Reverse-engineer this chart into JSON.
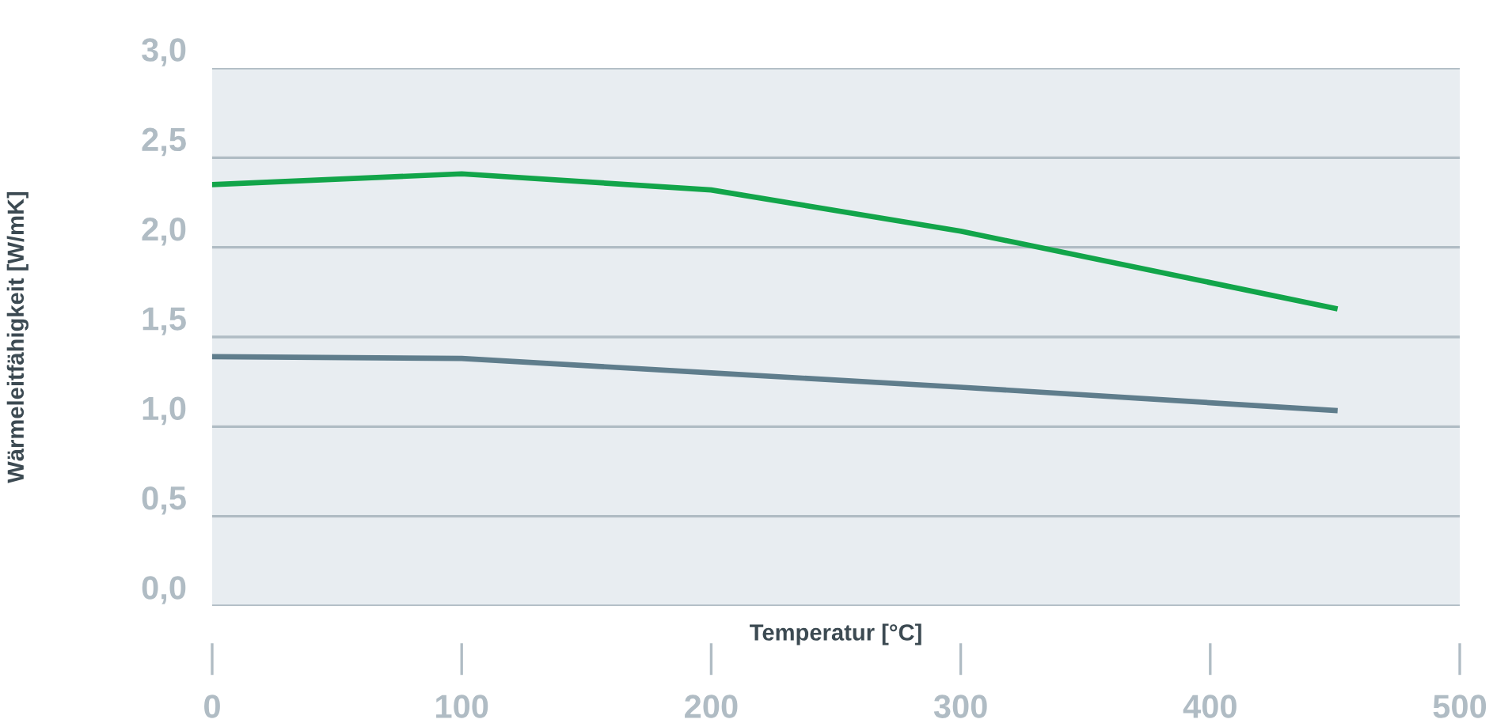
{
  "chart_data": {
    "type": "line",
    "xlabel": "Temperatur [°C]",
    "ylabel": "Wärmeleitfähigkeit [W/mK]",
    "x": [
      0,
      100,
      200,
      300,
      450
    ],
    "series": [
      {
        "color": "#12a54a",
        "values": [
          2.35,
          2.41,
          2.32,
          2.09,
          1.66
        ]
      },
      {
        "color": "#5f7d8c",
        "values": [
          1.39,
          1.38,
          1.3,
          1.22,
          1.09
        ]
      }
    ],
    "xlim": [
      0,
      500
    ],
    "xticks": [
      0,
      100,
      200,
      300,
      400,
      500
    ],
    "ylim": [
      0,
      3
    ],
    "yticks": [
      {
        "value": 0,
        "label": "0,0"
      },
      {
        "value": 0.5,
        "label": "0,5"
      },
      {
        "value": 1,
        "label": "1,0"
      },
      {
        "value": 1.5,
        "label": "1,5"
      },
      {
        "value": 2,
        "label": "2,0"
      },
      {
        "value": 2.5,
        "label": "2,5"
      },
      {
        "value": 3,
        "label": "3,0"
      }
    ],
    "grid": "y",
    "marker": "none",
    "line_style": "solid"
  }
}
